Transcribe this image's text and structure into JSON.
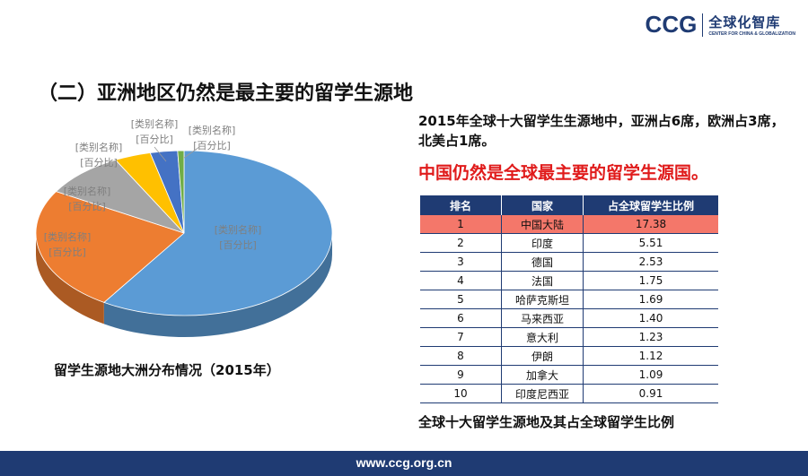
{
  "logo": {
    "mark": "CCG",
    "cn": "全球化智库",
    "en": "CENTER FOR CHINA & GLOBALIZATION"
  },
  "title": "（二）亚洲地区仍然是最主要的留学生源地",
  "summary": "2015年全球十大留学生生源地中，亚洲占6席，欧洲占3席，北美占1席。",
  "highlight": "中国仍然是全球最主要的留学生源国。",
  "pie_caption": "留学生源地大洲分布情况（2015年）",
  "table_caption": "全球十大留学生源地及其占全球留学生比例",
  "footer": "www.ccg.org.cn",
  "colors": {
    "navy": "#1f3b73",
    "red": "#e01b1b",
    "highlight_row": "#f4776a"
  },
  "chart_data": [
    {
      "type": "pie",
      "title": "",
      "slice_label": [
        "[类别名称]",
        "[百分比]"
      ],
      "slices": [
        {
          "label": "[类别名称]",
          "share": 0.595,
          "color": "#5b9bd5"
        },
        {
          "label": "[类别名称]",
          "share": 0.245,
          "color": "#ed7d31"
        },
        {
          "label": "[类别名称]",
          "share": 0.09,
          "color": "#a5a5a5"
        },
        {
          "label": "[类别名称]",
          "share": 0.04,
          "color": "#ffc000"
        },
        {
          "label": "[类别名称]",
          "share": 0.03,
          "color": "#4472c4"
        },
        {
          "label": "[类别名称]",
          "share": 0.007,
          "color": "#70ad47"
        }
      ]
    },
    {
      "type": "table",
      "columns": [
        "排名",
        "国家",
        "占全球留学生比例"
      ],
      "rows": [
        [
          "1",
          "中国大陆",
          "17.38"
        ],
        [
          "2",
          "印度",
          "5.51"
        ],
        [
          "3",
          "德国",
          "2.53"
        ],
        [
          "4",
          "法国",
          "1.75"
        ],
        [
          "5",
          "哈萨克斯坦",
          "1.69"
        ],
        [
          "6",
          "马来西亚",
          "1.40"
        ],
        [
          "7",
          "意大利",
          "1.23"
        ],
        [
          "8",
          "伊朗",
          "1.12"
        ],
        [
          "9",
          "加拿大",
          "1.09"
        ],
        [
          "10",
          "印度尼西亚",
          "0.91"
        ]
      ]
    }
  ]
}
